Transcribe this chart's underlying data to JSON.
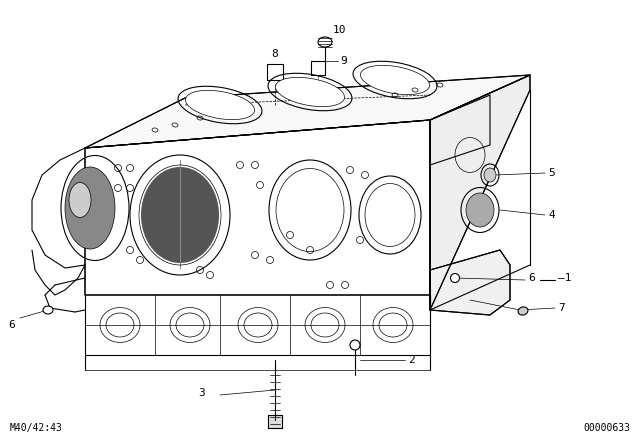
{
  "bg_color": "#ffffff",
  "line_color": "#000000",
  "fig_width": 6.4,
  "fig_height": 4.48,
  "dpi": 100,
  "bottom_left_text": "M40/42:43",
  "bottom_right_text": "00000633"
}
